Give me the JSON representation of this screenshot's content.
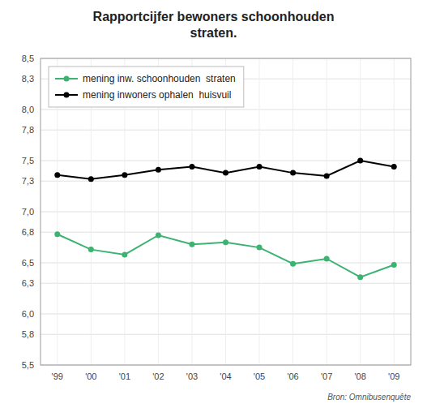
{
  "chart_data": {
    "type": "line",
    "title": "Rapportcijfer bewoners schoonhouden\nstraten.",
    "source": "Bron: Omnibusenquête",
    "categories": [
      "'99",
      "'00",
      "'01",
      "'02",
      "'03",
      "'04",
      "'05",
      "'06",
      "'07",
      "'08",
      "'09"
    ],
    "series": [
      {
        "name": "mening inw. schoonhouden  straten",
        "color": "#3cb371",
        "marker": "circle",
        "line_style": "solid",
        "values": [
          6.78,
          6.63,
          6.58,
          6.77,
          6.68,
          6.7,
          6.65,
          6.49,
          6.54,
          6.36,
          6.48
        ]
      },
      {
        "name": "mening inwoners ophalen  huisvuil",
        "color": "#000000",
        "marker": "circle",
        "line_style": "solid",
        "values": [
          7.36,
          7.32,
          7.36,
          7.41,
          7.44,
          7.38,
          7.44,
          7.38,
          7.35,
          7.5,
          7.44
        ]
      }
    ],
    "ylim": [
      5.5,
      8.5
    ],
    "yticks": [
      {
        "value": 5.5,
        "label": "5,5"
      },
      {
        "value": 5.8,
        "label": "5,8"
      },
      {
        "value": 6.0,
        "label": "6,0"
      },
      {
        "value": 6.3,
        "label": "6,3"
      },
      {
        "value": 6.5,
        "label": "6,5"
      },
      {
        "value": 6.8,
        "label": "6,8"
      },
      {
        "value": 7.0,
        "label": "7,0"
      },
      {
        "value": 7.3,
        "label": "7,3"
      },
      {
        "value": 7.5,
        "label": "7,5"
      },
      {
        "value": 7.8,
        "label": "7,8"
      },
      {
        "value": 8.0,
        "label": "8,0"
      },
      {
        "value": 8.3,
        "label": "8,3"
      },
      {
        "value": 8.5,
        "label": "8,5"
      }
    ],
    "grid": true,
    "legend": "upper left"
  }
}
